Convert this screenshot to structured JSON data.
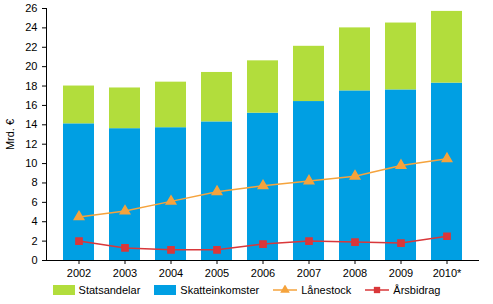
{
  "chart_data": {
    "type": "bar",
    "stacked": true,
    "grid": false,
    "legend": "bottom",
    "ylabel": "Mrd. €",
    "categories": [
      "2002",
      "2003",
      "2004",
      "2005",
      "2006",
      "2007",
      "2008",
      "2009",
      "2010*"
    ],
    "ylim": [
      0,
      26
    ],
    "yticks": [
      0,
      2,
      4,
      6,
      8,
      10,
      12,
      14,
      16,
      18,
      20,
      22,
      24,
      26
    ],
    "series": [
      {
        "name": "Skatteinkomster",
        "type": "bar",
        "color": "#009fe3",
        "values": [
          14.1,
          13.6,
          13.7,
          14.3,
          15.2,
          16.4,
          17.5,
          17.6,
          18.3
        ]
      },
      {
        "name": "Statsandelar",
        "type": "bar",
        "color": "#b2dd3c",
        "values": [
          3.9,
          4.2,
          4.7,
          5.1,
          5.4,
          5.7,
          6.5,
          6.9,
          7.4
        ]
      },
      {
        "name": "Lånestock",
        "type": "line",
        "marker": "triangle",
        "color": "#f5a33c",
        "values": [
          4.5,
          5.1,
          6.1,
          7.1,
          7.7,
          8.2,
          8.7,
          9.8,
          10.5
        ]
      },
      {
        "name": "Årsbidrag",
        "type": "line",
        "marker": "square",
        "color": "#d9373a",
        "values": [
          2.0,
          1.3,
          1.1,
          1.1,
          1.7,
          2.0,
          1.9,
          1.8,
          2.5
        ]
      }
    ]
  }
}
